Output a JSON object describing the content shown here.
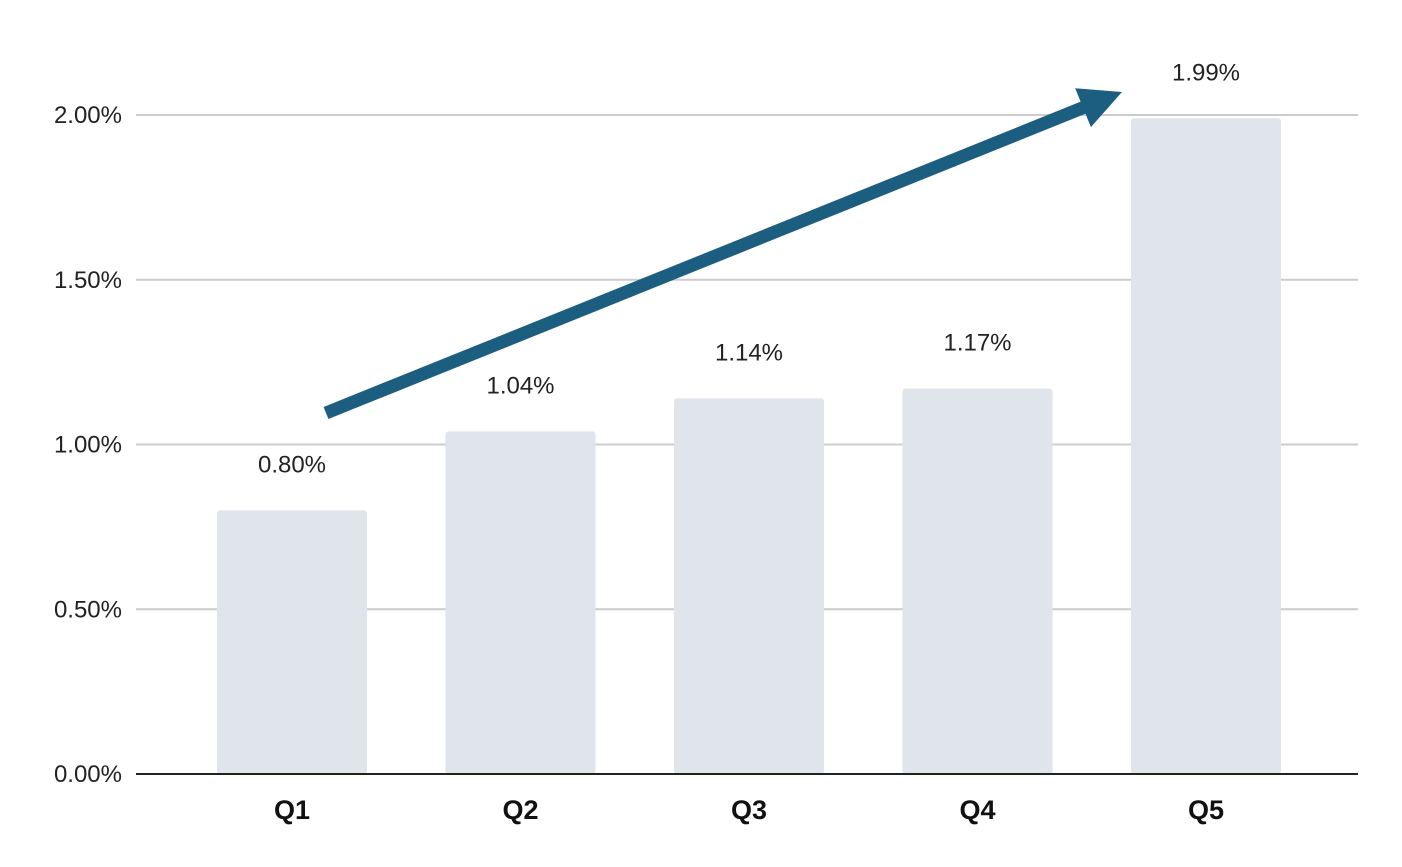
{
  "chart_data": {
    "type": "bar",
    "title": "",
    "xlabel": "",
    "ylabel": "",
    "categories": [
      "Q1",
      "Q2",
      "Q3",
      "Q4",
      "Q5"
    ],
    "values": [
      0.8,
      1.04,
      1.14,
      1.17,
      1.99
    ],
    "data_labels": [
      "0.80%",
      "1.04%",
      "1.14%",
      "1.17%",
      "1.99%"
    ],
    "ylim": [
      0,
      2.0
    ],
    "y_ticks": [
      0,
      0.5,
      1.0,
      1.5,
      2.0
    ],
    "y_tick_labels": [
      "0.00%",
      "0.50%",
      "1.00%",
      "1.50%",
      "2.00%"
    ],
    "grid": true,
    "legend": "none",
    "annotations": [
      {
        "type": "trend-arrow",
        "from_category": "Q1",
        "to_category": "Q5",
        "direction": "up"
      }
    ],
    "colors": {
      "bar": "#dfe5ea",
      "arrow": "#1b5e80",
      "grid": "#cccccc",
      "axis": "#222222"
    }
  }
}
